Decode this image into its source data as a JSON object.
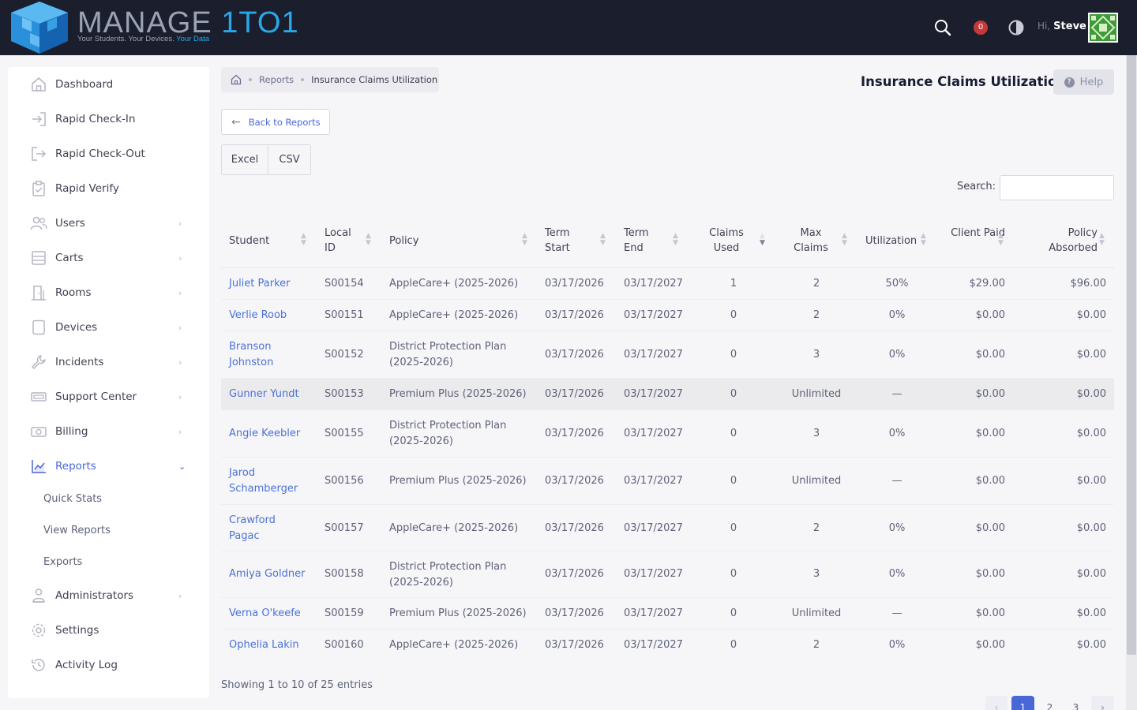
{
  "app": {
    "logo_main": "MANAGE",
    "logo_accent": "1TO1",
    "tagline_main": "Your Students. Your Devices.",
    "tagline_accent": "Your Data",
    "notification_count": "0",
    "greeting": "Hi,",
    "user_name": "Steve"
  },
  "sidebar": {
    "items": [
      {
        "label": "Dashboard",
        "icon": "home-icon"
      },
      {
        "label": "Rapid Check-In",
        "icon": "sign-in-icon"
      },
      {
        "label": "Rapid Check-Out",
        "icon": "sign-out-icon"
      },
      {
        "label": "Rapid Verify",
        "icon": "clipboard-check-icon"
      },
      {
        "label": "Users",
        "icon": "users-icon"
      },
      {
        "label": "Carts",
        "icon": "cart-icon"
      },
      {
        "label": "Rooms",
        "icon": "door-icon"
      },
      {
        "label": "Devices",
        "icon": "tablet-icon"
      },
      {
        "label": "Incidents",
        "icon": "wrench-icon"
      },
      {
        "label": "Support Center",
        "icon": "ticket-icon"
      },
      {
        "label": "Billing",
        "icon": "money-icon"
      },
      {
        "label": "Reports",
        "icon": "chart-icon"
      },
      {
        "label": "Administrators",
        "icon": "admin-icon"
      },
      {
        "label": "Settings",
        "icon": "gear-icon"
      },
      {
        "label": "Activity Log",
        "icon": "history-icon"
      }
    ],
    "reports_sub": [
      "Quick Stats",
      "View Reports",
      "Exports"
    ]
  },
  "breadcrumb": {
    "parent": "Reports",
    "current": "Insurance Claims Utilization"
  },
  "page": {
    "title": "Insurance Claims Utilization",
    "help_label": "Help",
    "back_label": "Back to Reports",
    "excel_label": "Excel",
    "csv_label": "CSV",
    "search_label": "Search:",
    "search_value": ""
  },
  "table": {
    "columns": [
      "Student",
      "Local ID",
      "Policy",
      "Term Start",
      "Term End",
      "Claims Used",
      "Max Claims",
      "Utilization",
      "Client Paid",
      "Policy Absorbed"
    ],
    "rows": [
      [
        "Juliet Parker",
        "S00154",
        "AppleCare+ (2025-2026)",
        "03/17/2026",
        "03/17/2027",
        "1",
        "2",
        "50%",
        "$29.00",
        "$96.00"
      ],
      [
        "Verlie Roob",
        "S00151",
        "AppleCare+ (2025-2026)",
        "03/17/2026",
        "03/17/2027",
        "0",
        "2",
        "0%",
        "$0.00",
        "$0.00"
      ],
      [
        "Branson Johnston",
        "S00152",
        "District Protection Plan (2025-2026)",
        "03/17/2026",
        "03/17/2027",
        "0",
        "3",
        "0%",
        "$0.00",
        "$0.00"
      ],
      [
        "Gunner Yundt",
        "S00153",
        "Premium Plus (2025-2026)",
        "03/17/2026",
        "03/17/2027",
        "0",
        "Unlimited",
        "—",
        "$0.00",
        "$0.00"
      ],
      [
        "Angie Keebler",
        "S00155",
        "District Protection Plan (2025-2026)",
        "03/17/2026",
        "03/17/2027",
        "0",
        "3",
        "0%",
        "$0.00",
        "$0.00"
      ],
      [
        "Jarod Schamberger",
        "S00156",
        "Premium Plus (2025-2026)",
        "03/17/2026",
        "03/17/2027",
        "0",
        "Unlimited",
        "—",
        "$0.00",
        "$0.00"
      ],
      [
        "Crawford Pagac",
        "S00157",
        "AppleCare+ (2025-2026)",
        "03/17/2026",
        "03/17/2027",
        "0",
        "2",
        "0%",
        "$0.00",
        "$0.00"
      ],
      [
        "Amiya Goldner",
        "S00158",
        "District Protection Plan (2025-2026)",
        "03/17/2026",
        "03/17/2027",
        "0",
        "3",
        "0%",
        "$0.00",
        "$0.00"
      ],
      [
        "Verna O'keefe",
        "S00159",
        "Premium Plus (2025-2026)",
        "03/17/2026",
        "03/17/2027",
        "0",
        "Unlimited",
        "—",
        "$0.00",
        "$0.00"
      ],
      [
        "Ophelia Lakin",
        "S00160",
        "AppleCare+ (2025-2026)",
        "03/17/2026",
        "03/17/2027",
        "0",
        "2",
        "0%",
        "$0.00",
        "$0.00"
      ]
    ]
  },
  "footer": {
    "showing": "Showing 1 to 10 of 25 entries",
    "pages": [
      "1",
      "2",
      "3"
    ],
    "prev": "‹",
    "next": "›"
  },
  "colors": {
    "accent": "#4a67d6",
    "link": "#4a72d6",
    "topbar": "#1b1e2c",
    "badge": "#c23a3a"
  }
}
